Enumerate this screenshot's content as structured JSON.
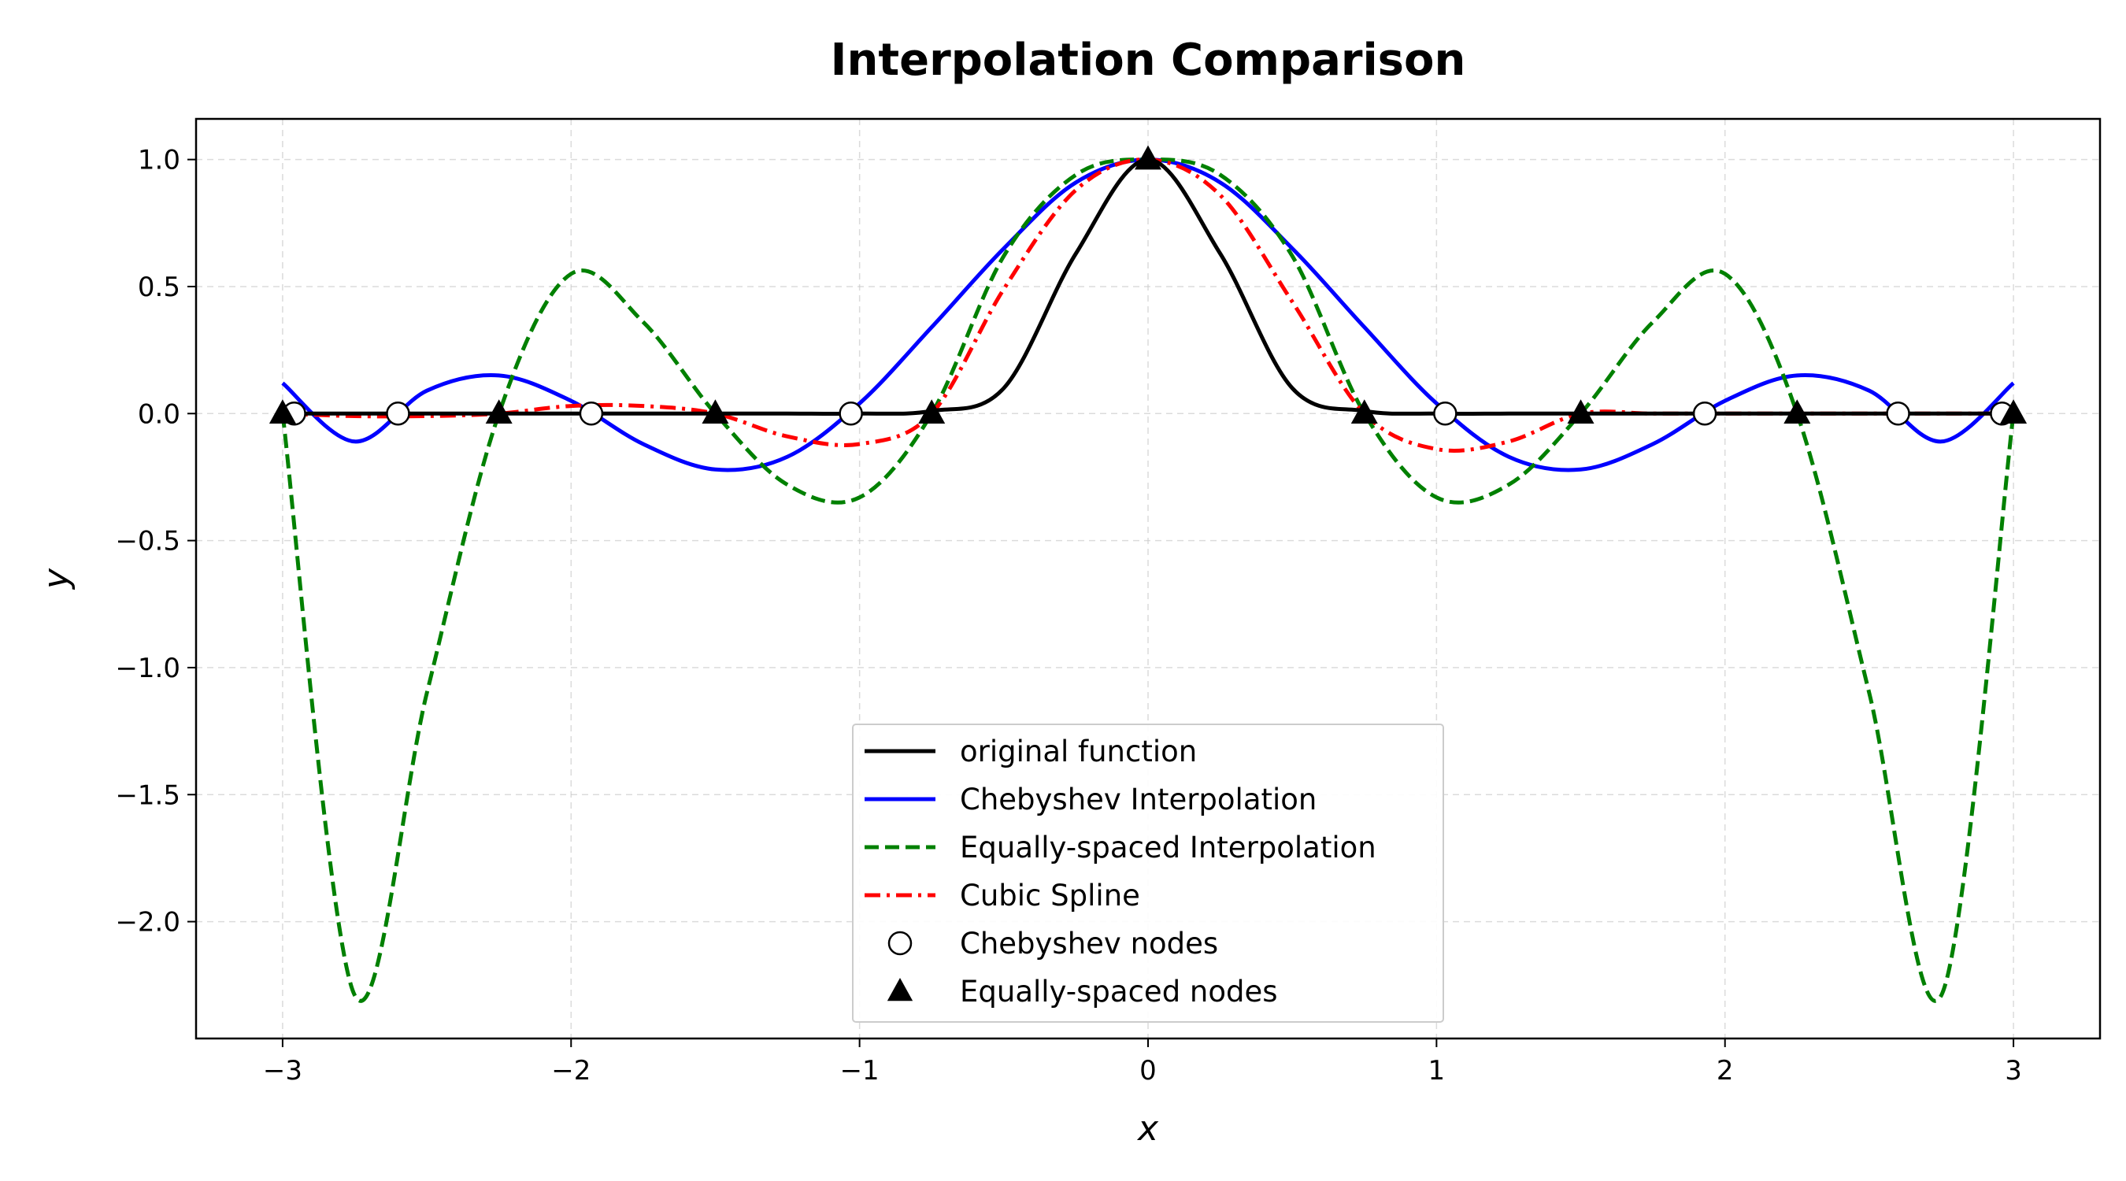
{
  "chart_data": {
    "type": "line",
    "title": "Interpolation Comparison",
    "xlabel": "x",
    "ylabel": "y",
    "xlim": [
      -3.3,
      3.3
    ],
    "ylim": [
      -2.46,
      1.16
    ],
    "x_ticks": [
      -3,
      -2,
      -1,
      0,
      1,
      2,
      3
    ],
    "x_tick_labels": [
      "−3",
      "−2",
      "−1",
      "0",
      "1",
      "2",
      "3"
    ],
    "y_ticks": [
      1.0,
      0.5,
      0.0,
      -0.5,
      -1.0,
      -1.5,
      -2.0
    ],
    "y_tick_labels": [
      "1.0",
      "0.5",
      "0.0",
      "−0.5",
      "−1.0",
      "−1.5",
      "−2.0"
    ],
    "grid": true,
    "legend_position": "bottom-center",
    "x": [
      -3.0,
      -2.75,
      -2.5,
      -2.25,
      -2.0,
      -1.75,
      -1.5,
      -1.25,
      -1.0,
      -0.75,
      -0.5,
      -0.25,
      0.0,
      0.25,
      0.5,
      0.75,
      1.0,
      1.25,
      1.5,
      1.75,
      2.0,
      2.25,
      2.5,
      2.75,
      3.0
    ],
    "series": [
      {
        "name": "original function",
        "color": "#000000",
        "style": "solid",
        "values": [
          0.0,
          0.0,
          0.0,
          0.0,
          0.0,
          0.0,
          0.0,
          0.0,
          0.0,
          0.01,
          0.1,
          0.63,
          1.0,
          0.63,
          0.1,
          0.01,
          0.0,
          0.0,
          0.0,
          0.0,
          0.0,
          0.0,
          0.0,
          0.0,
          0.0
        ]
      },
      {
        "name": "Chebyshev Interpolation",
        "color": "#0000ff",
        "style": "solid",
        "values": [
          0.12,
          -0.11,
          0.09,
          0.15,
          0.05,
          -0.12,
          -0.22,
          -0.17,
          0.04,
          0.34,
          0.65,
          0.91,
          1.0,
          0.91,
          0.65,
          0.34,
          0.04,
          -0.17,
          -0.22,
          -0.12,
          0.05,
          0.15,
          0.09,
          -0.11,
          0.12
        ]
      },
      {
        "name": "Equally-spaced Interpolation",
        "color": "#008000",
        "style": "dashed",
        "values": [
          0.0,
          -2.29,
          -1.1,
          0.0,
          0.55,
          0.36,
          0.0,
          -0.28,
          -0.33,
          0.0,
          0.62,
          0.94,
          1.0,
          0.94,
          0.62,
          0.0,
          -0.33,
          -0.28,
          0.0,
          0.36,
          0.55,
          0.0,
          -1.1,
          -2.29,
          0.0
        ]
      },
      {
        "name": "Cubic Spline",
        "color": "#ff0000",
        "style": "dashdot",
        "values": [
          0.0,
          -0.01,
          -0.01,
          0.0,
          0.03,
          0.03,
          0.0,
          -0.09,
          -0.12,
          0.0,
          0.49,
          0.88,
          1.0,
          0.86,
          0.44,
          0.0,
          -0.14,
          -0.11,
          0.0,
          0.0,
          0.0,
          0.0,
          0.0,
          0.0,
          0.0
        ]
      }
    ],
    "markers": [
      {
        "name": "Chebyshev nodes",
        "shape": "circle",
        "x": [
          -2.96,
          -2.6,
          -1.93,
          -1.03,
          1.03,
          1.93,
          2.6,
          2.96
        ],
        "y": [
          0.0,
          0.0,
          0.0,
          0.0,
          0.0,
          0.0,
          0.0,
          0.0
        ]
      },
      {
        "name": "Equally-spaced nodes",
        "shape": "triangle",
        "x": [
          -3.0,
          -2.25,
          -1.5,
          -0.75,
          0.0,
          0.75,
          1.5,
          2.25,
          3.0
        ],
        "y": [
          0.0,
          0.0,
          0.0,
          0.0,
          1.0,
          0.0,
          0.0,
          0.0,
          0.0
        ]
      }
    ]
  }
}
